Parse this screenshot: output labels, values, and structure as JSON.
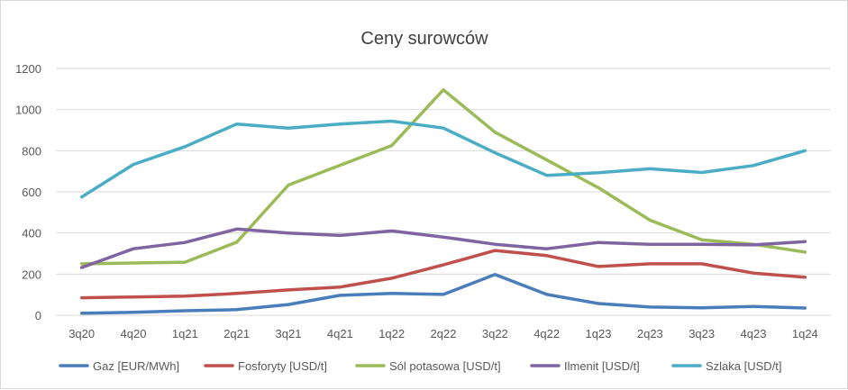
{
  "chart_data": {
    "type": "line",
    "title": "Ceny surowców",
    "xlabel": "",
    "ylabel": "",
    "ylim": [
      0,
      1200
    ],
    "yticks": [
      0,
      200,
      400,
      600,
      800,
      1000,
      1200
    ],
    "grid": true,
    "legend_position": "bottom",
    "categories": [
      "3q20",
      "4q20",
      "1q21",
      "2q21",
      "3q21",
      "4q21",
      "1q22",
      "2q22",
      "3q22",
      "4q22",
      "1q23",
      "2q23",
      "3q23",
      "4q23",
      "1q24"
    ],
    "series": [
      {
        "name": "Gaz [EUR/MWh]",
        "color": "#4a7ebb",
        "values": [
          10,
          14,
          22,
          27,
          52,
          97,
          106,
          101,
          198,
          101,
          57,
          40,
          36,
          43,
          35
        ]
      },
      {
        "name": "Fosforyty [USD/t]",
        "color": "#c0504d",
        "values": [
          85,
          89,
          93,
          106,
          123,
          137,
          180,
          245,
          315,
          290,
          237,
          250,
          250,
          205,
          185
        ]
      },
      {
        "name": "Sól potasowa [USD/t]",
        "color": "#9bbb59",
        "values": [
          250,
          254,
          258,
          355,
          633,
          729,
          825,
          1096,
          890,
          755,
          620,
          462,
          367,
          345,
          307
        ]
      },
      {
        "name": "Ilmenit [USD/t]",
        "color": "#8064a2",
        "values": [
          232,
          323,
          354,
          419,
          400,
          388,
          410,
          380,
          345,
          323,
          354,
          345,
          345,
          342,
          358
        ]
      },
      {
        "name": "Szlaka [USD/t]",
        "color": "#4bacc6",
        "values": [
          575,
          733,
          820,
          930,
          910,
          930,
          944,
          910,
          790,
          680,
          693,
          712,
          694,
          728,
          800
        ]
      }
    ]
  }
}
